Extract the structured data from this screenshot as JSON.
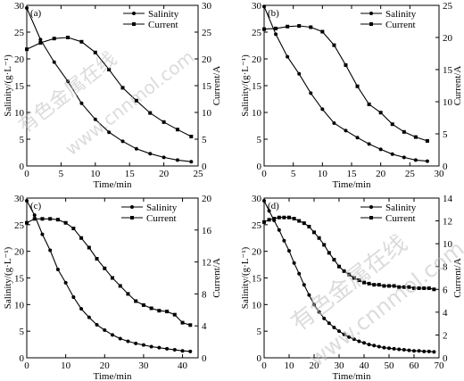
{
  "chart_data": [
    {
      "type": "line",
      "panel_label": "(a)",
      "xlabel": "Time/min",
      "ylabel_left": "Salinity/(g·L⁻¹)",
      "ylabel_right": "Current/A",
      "xlim": [
        0,
        25
      ],
      "xticks": [
        0,
        5,
        10,
        15,
        20,
        25
      ],
      "ylim_left": [
        0,
        30
      ],
      "yticks_left": [
        0,
        5,
        10,
        15,
        20,
        25,
        30
      ],
      "ylim_right": [
        0,
        30
      ],
      "yticks_right": [
        0,
        5,
        10,
        15,
        20,
        25,
        30
      ],
      "legend": [
        "Salinity",
        "Current"
      ],
      "series": [
        {
          "name": "Salinity",
          "axis": "left",
          "marker": "circle",
          "x": [
            0,
            2,
            4,
            6,
            8,
            10,
            12,
            14,
            16,
            18,
            20,
            22,
            24
          ],
          "y": [
            29.5,
            23.6,
            19.4,
            15.8,
            11.7,
            8.7,
            6.3,
            4.6,
            3.2,
            2.3,
            1.6,
            1.1,
            0.8
          ]
        },
        {
          "name": "Current",
          "axis": "right",
          "marker": "square",
          "x": [
            0,
            2,
            4,
            6,
            8,
            10,
            12,
            14,
            16,
            18,
            20,
            22,
            24
          ],
          "y": [
            21.8,
            23.0,
            23.8,
            24.0,
            23.2,
            21.2,
            18.0,
            14.6,
            12.2,
            9.9,
            8.2,
            6.8,
            5.5
          ]
        }
      ]
    },
    {
      "type": "line",
      "panel_label": "(b)",
      "xlabel": "Time/min",
      "ylabel_left": "Salinity/(g·L⁻¹)",
      "ylabel_right": "Current/A",
      "xlim": [
        0,
        30
      ],
      "xticks": [
        0,
        5,
        10,
        15,
        20,
        25,
        30
      ],
      "ylim_left": [
        0,
        30
      ],
      "yticks_left": [
        0,
        5,
        10,
        15,
        20,
        25,
        30
      ],
      "ylim_right": [
        0,
        25
      ],
      "yticks_right": [
        0,
        5,
        10,
        15,
        20,
        25
      ],
      "legend": [
        "Salinity",
        "Current"
      ],
      "series": [
        {
          "name": "Salinity",
          "axis": "left",
          "marker": "circle",
          "x": [
            0,
            2,
            4,
            6,
            8,
            10,
            12,
            14,
            16,
            18,
            20,
            22,
            24,
            26,
            28
          ],
          "y": [
            29.8,
            24.6,
            20.4,
            17.2,
            13.6,
            10.6,
            8.0,
            6.6,
            5.3,
            4.1,
            3.1,
            2.2,
            1.6,
            1.1,
            0.9
          ]
        },
        {
          "name": "Current",
          "axis": "right",
          "marker": "square",
          "x": [
            0,
            2,
            4,
            6,
            8,
            10,
            12,
            14,
            16,
            18,
            20,
            22,
            24,
            26,
            28
          ],
          "y": [
            21.3,
            21.4,
            21.7,
            21.8,
            21.6,
            20.9,
            18.8,
            15.7,
            12.4,
            9.6,
            8.3,
            6.5,
            5.3,
            4.5,
            3.9
          ]
        }
      ]
    },
    {
      "type": "line",
      "panel_label": "(c)",
      "xlabel": "Time/min",
      "ylabel_left": "Salinity/(g·L⁻¹)",
      "ylabel_right": "Current/A",
      "xlim": [
        0,
        44
      ],
      "xticks": [
        0,
        10,
        20,
        30,
        40
      ],
      "ylim_left": [
        0,
        30
      ],
      "yticks_left": [
        0,
        5,
        10,
        15,
        20,
        25,
        30
      ],
      "ylim_right": [
        0,
        20
      ],
      "yticks_right": [
        0,
        4,
        8,
        12,
        16,
        20
      ],
      "legend": [
        "Salinity",
        "Current"
      ],
      "series": [
        {
          "name": "Salinity",
          "axis": "left",
          "marker": "circle",
          "x": [
            0,
            2,
            4,
            6,
            8,
            10,
            12,
            14,
            16,
            18,
            20,
            22,
            24,
            26,
            28,
            30,
            32,
            34,
            36,
            38,
            40,
            42
          ],
          "y": [
            29.5,
            26.8,
            23.2,
            20.2,
            16.6,
            14.1,
            11.4,
            9.2,
            7.6,
            6.2,
            5.2,
            4.3,
            3.6,
            3.1,
            2.7,
            2.4,
            2.1,
            1.9,
            1.7,
            1.5,
            1.3,
            1.2
          ]
        },
        {
          "name": "Current",
          "axis": "right",
          "marker": "square",
          "x": [
            0,
            2,
            4,
            6,
            8,
            10,
            12,
            14,
            16,
            18,
            20,
            22,
            24,
            26,
            28,
            30,
            32,
            34,
            36,
            38,
            40,
            42
          ],
          "y": [
            16.9,
            17.4,
            17.4,
            17.4,
            17.3,
            16.9,
            16.2,
            15.0,
            13.8,
            12.4,
            11.2,
            10.0,
            9.0,
            8.0,
            7.1,
            6.6,
            6.2,
            5.9,
            5.8,
            5.4,
            4.4,
            4.1
          ]
        }
      ]
    },
    {
      "type": "line",
      "panel_label": "(d)",
      "xlabel": "Time/min",
      "ylabel_left": "Salinity/(g·L⁻¹)",
      "ylabel_right": "Current/A",
      "xlim": [
        0,
        70
      ],
      "xticks": [
        0,
        10,
        20,
        30,
        40,
        50,
        60,
        70
      ],
      "ylim_left": [
        0,
        30
      ],
      "yticks_left": [
        0,
        5,
        10,
        15,
        20,
        25,
        30
      ],
      "ylim_right": [
        0,
        14
      ],
      "yticks_right": [
        0,
        2,
        4,
        6,
        8,
        10,
        12,
        14
      ],
      "legend": [
        "Salinity",
        "Current"
      ],
      "series": [
        {
          "name": "Salinity",
          "axis": "left",
          "marker": "circle",
          "x": [
            0,
            2,
            4,
            6,
            8,
            10,
            12,
            14,
            16,
            18,
            20,
            22,
            24,
            26,
            28,
            30,
            32,
            34,
            36,
            38,
            40,
            42,
            44,
            46,
            48,
            50,
            52,
            54,
            56,
            58,
            60,
            62,
            64,
            66,
            68
          ],
          "y": [
            29.5,
            27.6,
            25.8,
            24.0,
            22.0,
            20.1,
            17.8,
            15.8,
            13.7,
            11.8,
            10.0,
            8.6,
            7.4,
            6.5,
            5.7,
            5.0,
            4.4,
            3.9,
            3.5,
            3.1,
            2.8,
            2.5,
            2.3,
            2.1,
            1.9,
            1.8,
            1.7,
            1.6,
            1.5,
            1.4,
            1.3,
            1.3,
            1.2,
            1.2,
            1.1
          ]
        },
        {
          "name": "Current",
          "axis": "right",
          "marker": "square",
          "x": [
            0,
            2,
            4,
            6,
            8,
            10,
            12,
            14,
            16,
            18,
            20,
            22,
            24,
            26,
            28,
            30,
            32,
            34,
            36,
            38,
            40,
            42,
            44,
            46,
            48,
            50,
            52,
            54,
            56,
            58,
            60,
            62,
            64,
            66,
            68
          ],
          "y": [
            11.9,
            12.1,
            12.2,
            12.3,
            12.3,
            12.3,
            12.2,
            12.0,
            11.8,
            11.5,
            11.0,
            10.5,
            9.9,
            9.2,
            8.6,
            8.0,
            7.6,
            7.3,
            7.0,
            6.8,
            6.6,
            6.5,
            6.4,
            6.4,
            6.3,
            6.3,
            6.3,
            6.2,
            6.2,
            6.2,
            6.1,
            6.1,
            6.1,
            6.1,
            6.0
          ]
        }
      ]
    }
  ],
  "watermark": {
    "line1": "有色金属在线",
    "line2": "www.cnnmol.com"
  }
}
